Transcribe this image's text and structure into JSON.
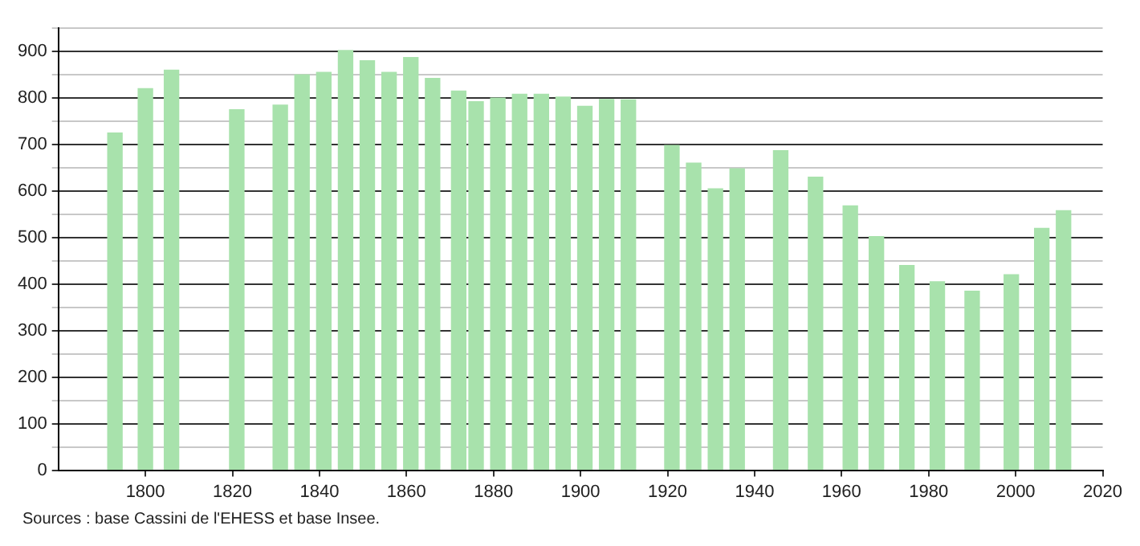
{
  "chart_data": {
    "type": "bar",
    "x": [
      1793,
      1800,
      1806,
      1821,
      1831,
      1836,
      1841,
      1846,
      1851,
      1856,
      1861,
      1866,
      1872,
      1876,
      1881,
      1886,
      1891,
      1896,
      1901,
      1906,
      1911,
      1921,
      1926,
      1931,
      1936,
      1946,
      1954,
      1962,
      1968,
      1975,
      1982,
      1990,
      1999,
      2006,
      2011
    ],
    "values": [
      725,
      820,
      860,
      775,
      785,
      850,
      855,
      902,
      880,
      855,
      887,
      842,
      815,
      792,
      800,
      808,
      808,
      802,
      782,
      797,
      796,
      698,
      660,
      605,
      648,
      687,
      630,
      568,
      502,
      440,
      405,
      385,
      420,
      520,
      558
    ],
    "color": "#a8e2ac",
    "xlim": [
      1780,
      2020
    ],
    "xticks": [
      1800,
      1820,
      1840,
      1860,
      1880,
      1900,
      1920,
      1940,
      1960,
      1980,
      2000,
      2020
    ],
    "ylim": [
      0,
      950
    ],
    "yticks": [
      0,
      {
        "value": 50,
        "label": null
      },
      100,
      {
        "value": 150,
        "label": null
      },
      200,
      {
        "value": 250,
        "label": null
      },
      300,
      {
        "value": 350,
        "label": null
      },
      400,
      {
        "value": 450,
        "label": null
      },
      500,
      {
        "value": 550,
        "label": null
      },
      600,
      {
        "value": 650,
        "label": null
      },
      700,
      {
        "value": 750,
        "label": null
      },
      800,
      {
        "value": 850,
        "label": null
      },
      900,
      {
        "value": 950,
        "label": null
      }
    ],
    "grid": "y",
    "annotations": [
      "Sources : base Cassini de l'EHESS et base Insee."
    ]
  }
}
